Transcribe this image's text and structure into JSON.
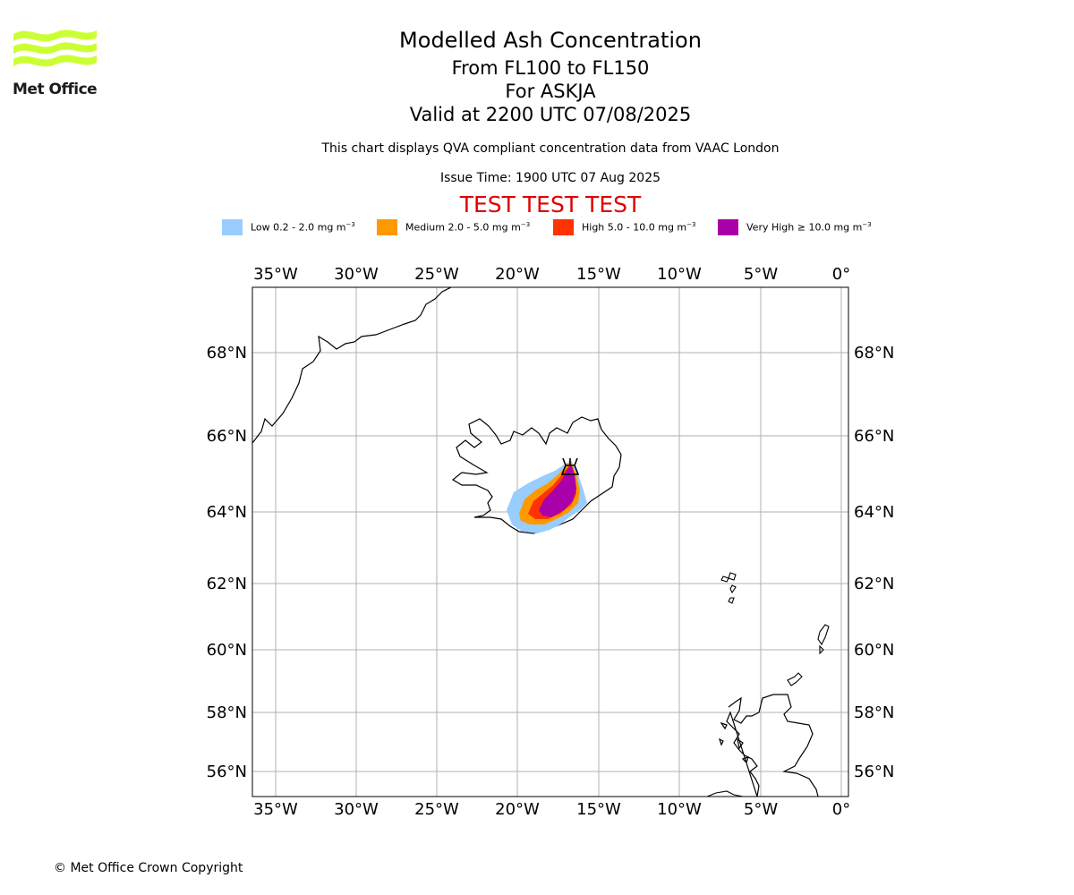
{
  "logo": {
    "text": "Met Office",
    "color": "#ccff33"
  },
  "title": {
    "line1": "Modelled Ash Concentration",
    "line2": "From FL100 to FL150",
    "line3": "For ASKJA",
    "line4": "Valid at 2200 UTC 07/08/2025"
  },
  "subtitle": "This chart displays QVA compliant concentration data from VAAC London",
  "issue_time": "Issue Time: 1900 UTC 07 Aug 2025",
  "test_banner": "TEST TEST TEST",
  "legend": [
    {
      "prefix": "Low 0.2 - 2.0 mg m",
      "color": "#99ccff"
    },
    {
      "prefix": "Medium 2.0 - 5.0 mg m",
      "color": "#ff9900"
    },
    {
      "prefix": "High 5.0 - 10.0 mg m",
      "color": "#ff3300"
    },
    {
      "prefix": "Very High ≥ 10.0 mg m",
      "color": "#aa00aa"
    }
  ],
  "legend_exponent": "−3",
  "map": {
    "lon_ticks": [
      "35°W",
      "30°W",
      "25°W",
      "20°W",
      "15°W",
      "10°W",
      "5°W",
      "0°"
    ],
    "lat_ticks": [
      "68°N",
      "66°N",
      "64°N",
      "62°N",
      "60°N",
      "58°N",
      "56°N"
    ],
    "volcano_symbol": "volcano-icon"
  },
  "copyright": "© Met Office Crown Copyright"
}
